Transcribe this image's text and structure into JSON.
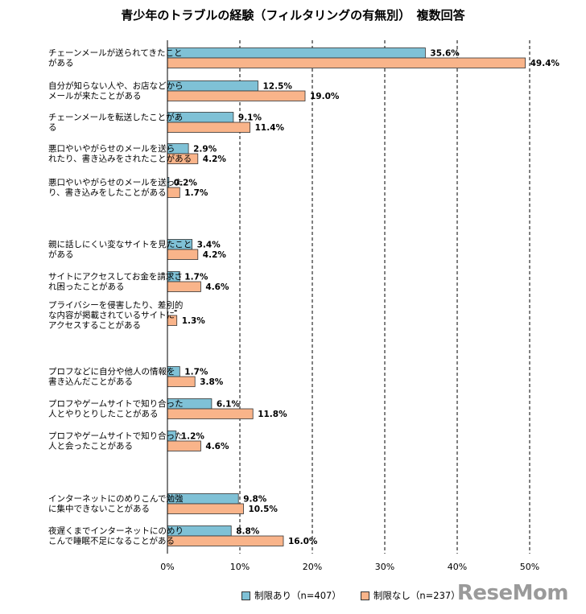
{
  "title": "青少年のトラブルの経験（フィルタリングの有無別）　複数回答",
  "logo": "ReseMom",
  "chart_data": {
    "type": "bar",
    "orientation": "horizontal",
    "title": "青少年のトラブルの経験（フィルタリングの有無別）　複数回答",
    "xlim": [
      0,
      50
    ],
    "x_ticks": [
      "0%",
      "10%",
      "20%",
      "30%",
      "40%",
      "50%"
    ],
    "grid": "vertical-dashed",
    "legend_position": "bottom",
    "categories": [
      [
        "チェーンメールが送られてきたこと",
        "がある"
      ],
      [
        "自分が知らない人や、お店などから",
        "メールが来たことがある"
      ],
      [
        "チェーンメールを転送したことがあ",
        "る"
      ],
      [
        "悪口やいやがらせのメールを送ら",
        "れたり、書き込みをされたことがある"
      ],
      [
        "悪口やいやがらせのメールを送った",
        "り、書き込みをしたことがある"
      ],
      [
        "親に話しにくい変なサイトを見たこと",
        "がある"
      ],
      [
        "サイトにアクセスしてお金を請求さ",
        "れ困ったことがある"
      ],
      [
        "プライバシーを侵害したり、差別的",
        "な内容が掲載されているサイトに",
        "アクセスすることがある"
      ],
      [
        "プロフなどに自分や他人の情報を",
        "書き込んだことがある"
      ],
      [
        "プロフやゲームサイトで知り合った",
        "人とやりとりしたことがある"
      ],
      [
        "プロフやゲームサイトで知り合った",
        "人と会ったことがある"
      ],
      [
        "インターネットにのめりこんで勉強",
        "に集中できないことがある"
      ],
      [
        "夜遅くまでインターネットにのめり",
        "こんで睡眠不足になることがある"
      ]
    ],
    "series": [
      {
        "name": "制限あり（n=407）",
        "color": "#7fc1d6",
        "values": [
          35.6,
          12.5,
          9.1,
          2.9,
          0.2,
          3.4,
          1.7,
          0,
          1.7,
          6.1,
          1.2,
          9.8,
          8.8
        ],
        "labels": [
          "35.6%",
          "12.5%",
          "9.1%",
          "2.9%",
          "0.2%",
          "3.4%",
          "1.7%",
          "-",
          "1.7%",
          "6.1%",
          "1.2%",
          "9.8%",
          "8.8%"
        ]
      },
      {
        "name": "制限なし（n=237）",
        "color": "#f9b48a",
        "values": [
          49.4,
          19.0,
          11.4,
          4.2,
          1.7,
          4.2,
          4.6,
          1.3,
          3.8,
          11.8,
          4.6,
          10.5,
          16.0
        ],
        "labels": [
          "49.4%",
          "19.0%",
          "11.4%",
          "4.2%",
          "1.7%",
          "4.2%",
          "4.6%",
          "1.3%",
          "3.8%",
          "11.8%",
          "4.6%",
          "10.5%",
          "16.0%"
        ]
      }
    ]
  }
}
